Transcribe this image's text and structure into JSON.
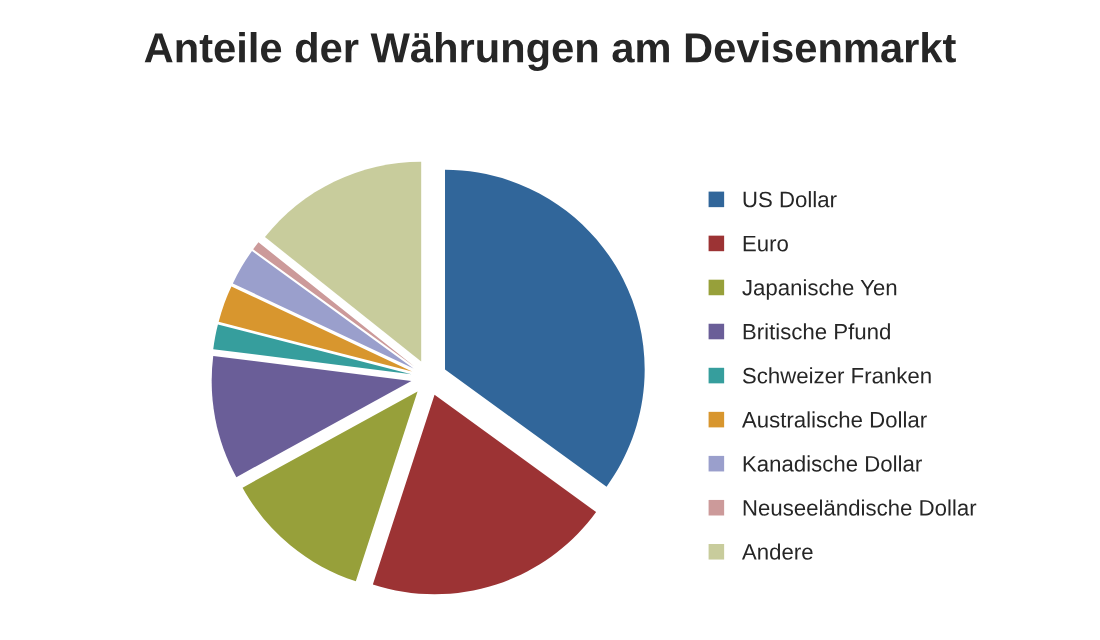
{
  "chart_data": {
    "type": "pie",
    "title": "Anteile der Währungen am Devisenmarkt",
    "categories": [
      "US Dollar",
      "Euro",
      "Japanische Yen",
      "Britische Pfund",
      "Schweizer Franken",
      "Australische Dollar",
      "Kanadische Dollar",
      "Neuseeländische Dollar",
      "Andere"
    ],
    "values": [
      35,
      20,
      12,
      10,
      2,
      3,
      3,
      0.7,
      14.3
    ],
    "colors": [
      "#31669a",
      "#9c3334",
      "#97a03a",
      "#6a5e98",
      "#369e9d",
      "#d8962e",
      "#9a9fcc",
      "#cc9a9a",
      "#c8cc9c"
    ],
    "legend": "right"
  }
}
